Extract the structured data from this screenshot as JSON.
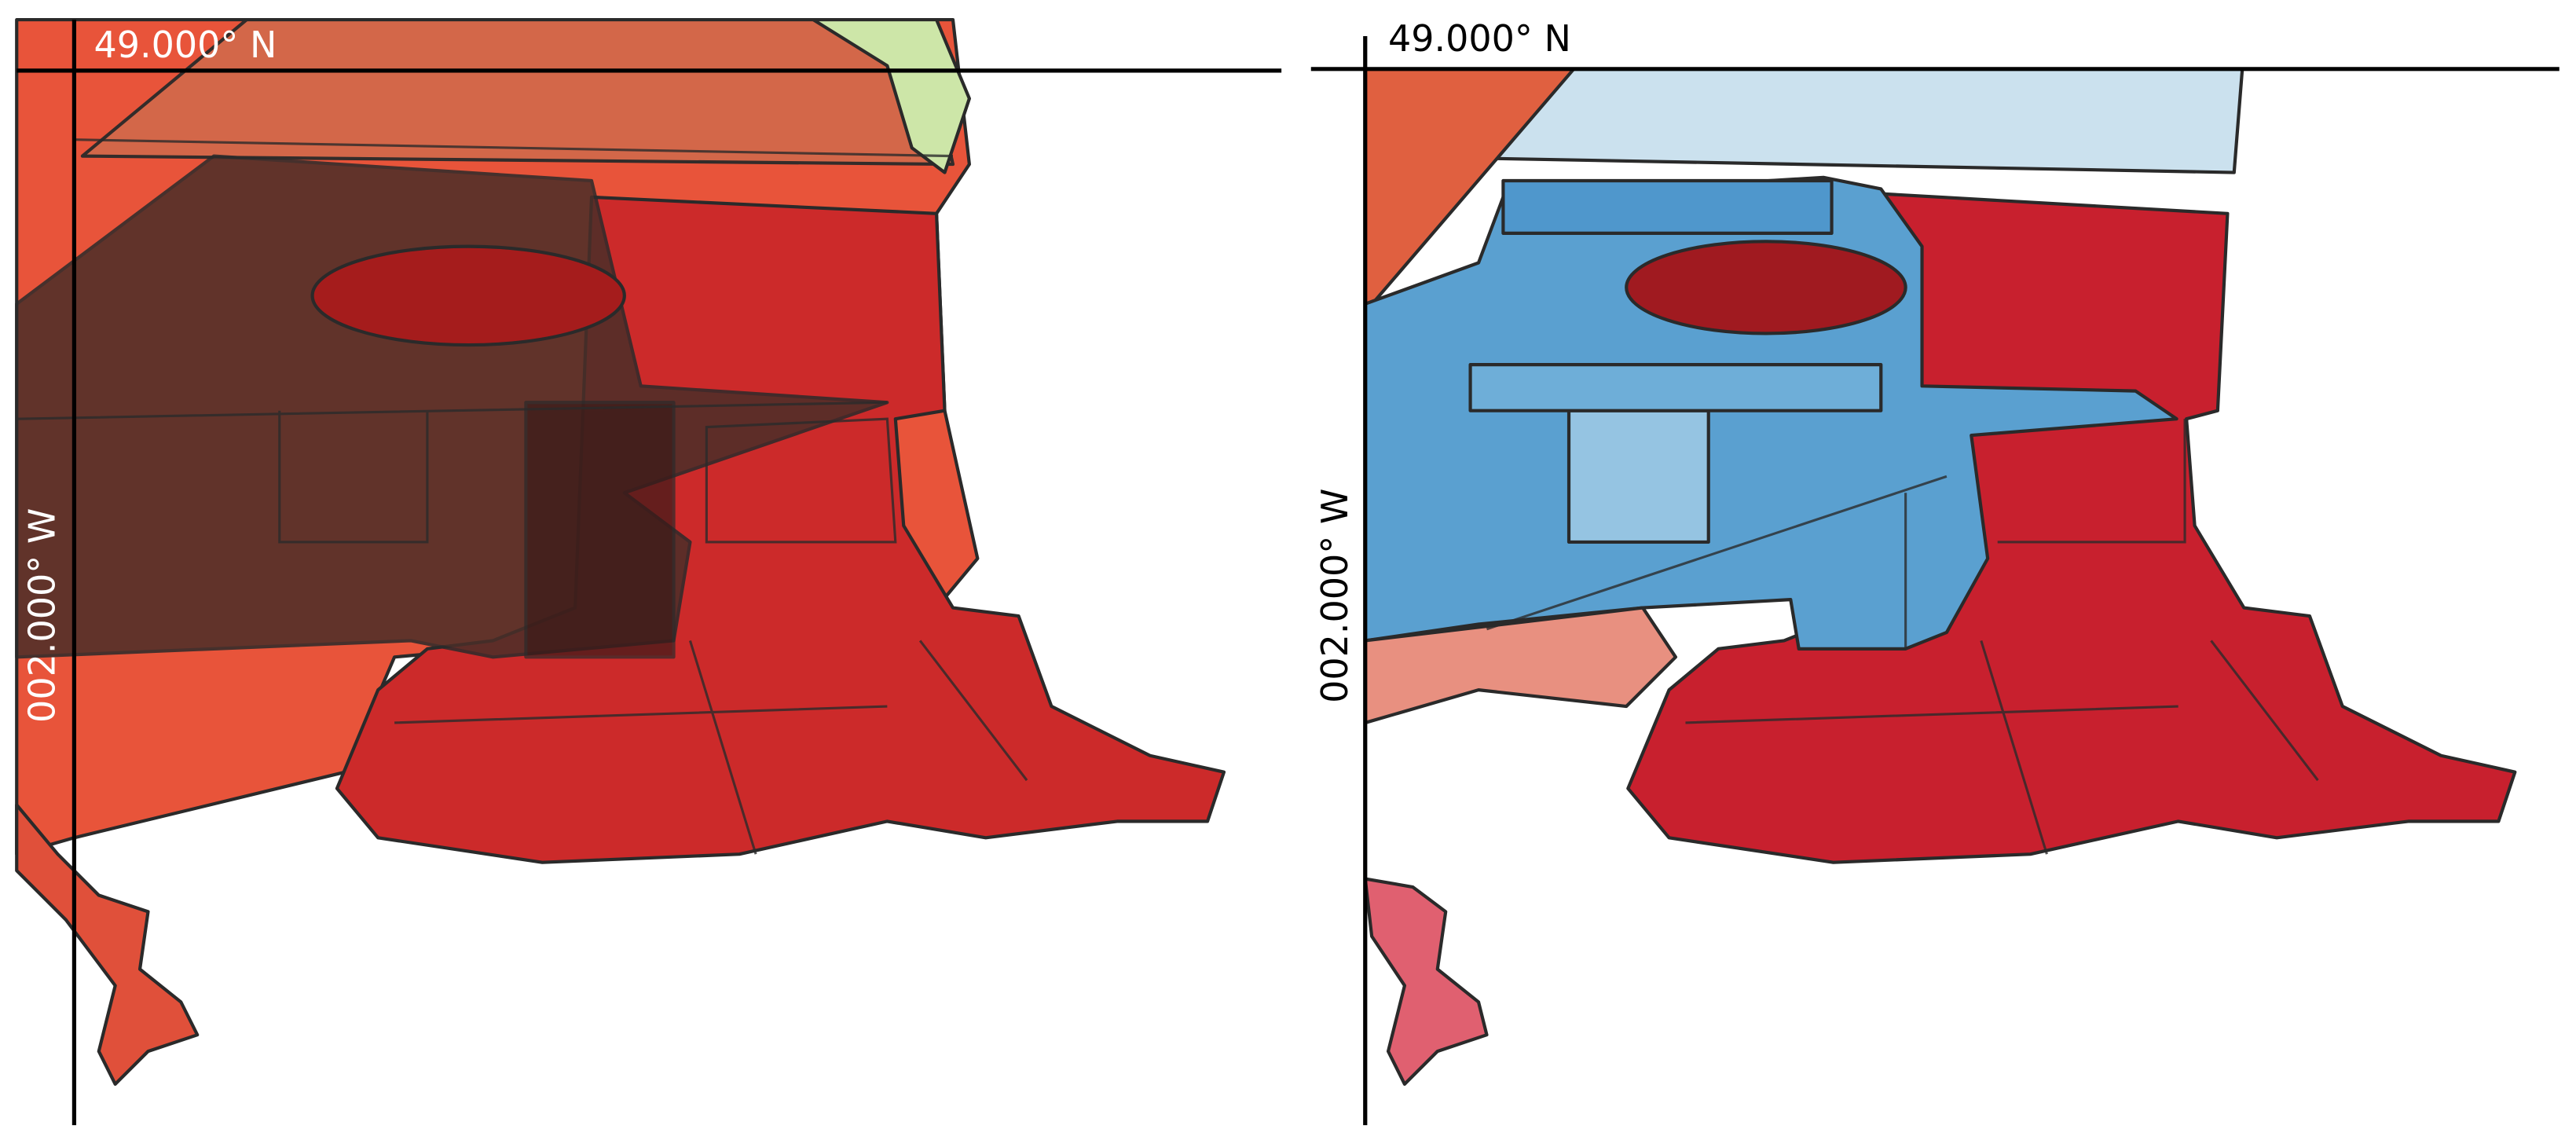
{
  "panels": [
    {
      "lat_label": "49.000° N",
      "lon_label": "002.000° W"
    },
    {
      "lat_label": "49.000° N",
      "lon_label": "002.000° W"
    }
  ]
}
